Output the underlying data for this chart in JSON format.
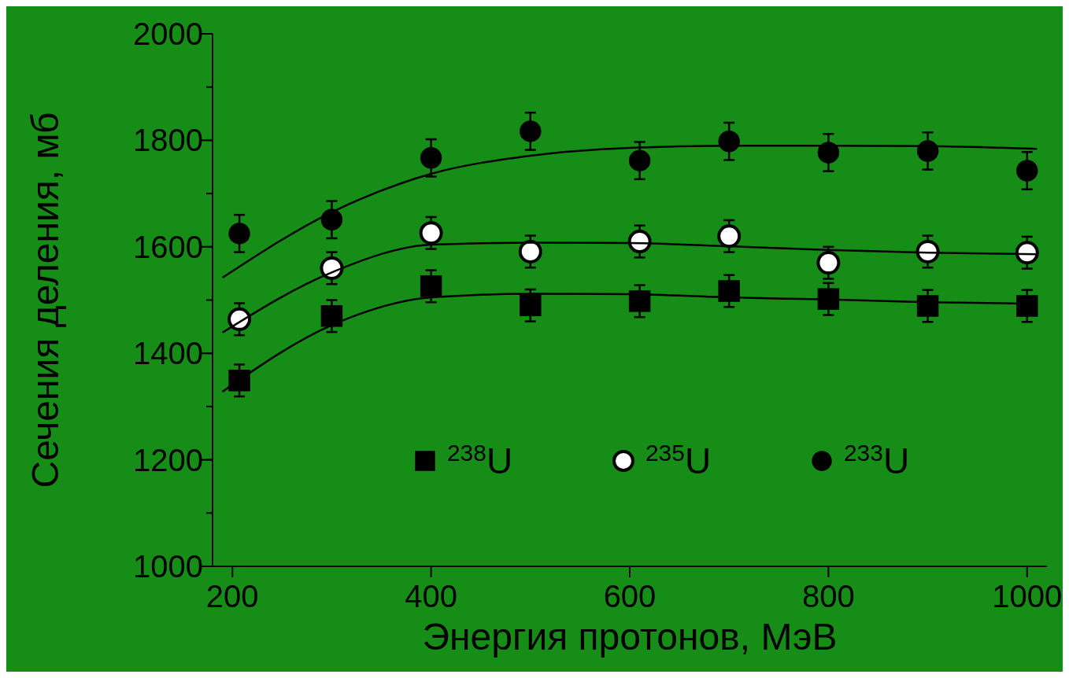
{
  "chart_data": {
    "type": "scatter",
    "xlabel": "Энергия  протонов,  МэВ",
    "ylabel": "Сечения  деления,  мб",
    "xlim": [
      180,
      1020
    ],
    "xticks": [
      200,
      400,
      600,
      800,
      1000
    ],
    "ylim": [
      1000,
      2000
    ],
    "yticks": [
      1000,
      1200,
      1400,
      1600,
      1800,
      2000
    ],
    "grid": false,
    "legend": "bottom",
    "series": [
      {
        "name": "$^{238}$U",
        "color": "#000000",
        "marker": "square",
        "x": [
          207,
          300,
          400,
          500,
          610,
          700,
          800,
          900,
          1000
        ],
        "values": [
          1349,
          1470,
          1526,
          1490,
          1498,
          1517,
          1502,
          1489,
          1489
        ],
        "errors": [
          30,
          30,
          30,
          30,
          30,
          30,
          30,
          30,
          30
        ]
      },
      {
        "name": "$^{235}$U",
        "color": "#ffffff",
        "marker": "circle",
        "x": [
          207,
          300,
          400,
          500,
          610,
          700,
          800,
          900,
          1000
        ],
        "values": [
          1464,
          1560,
          1626,
          1591,
          1610,
          1620,
          1570,
          1591,
          1589
        ],
        "errors": [
          30,
          30,
          30,
          30,
          30,
          30,
          30,
          30,
          30
        ]
      },
      {
        "name": "$^{233}$U",
        "color": "#000000",
        "marker": "circle",
        "x": [
          207,
          300,
          400,
          500,
          610,
          700,
          800,
          900,
          1000
        ],
        "values": [
          1625,
          1651,
          1767,
          1817,
          1762,
          1798,
          1777,
          1780,
          1743
        ],
        "errors": [
          35,
          35,
          35,
          35,
          35,
          35,
          35,
          35,
          35
        ]
      },
      {
        "type": "line",
        "color": "#000000",
        "marker": "none",
        "x": [
          190,
          300,
          400,
          500,
          600,
          700,
          800,
          900,
          1010
        ],
        "values": [
          1328,
          1453,
          1505,
          1512,
          1511,
          1505,
          1501,
          1496,
          1493
        ]
      },
      {
        "type": "line",
        "color": "#000000",
        "marker": "none",
        "x": [
          190,
          300,
          400,
          500,
          600,
          700,
          800,
          900,
          1010
        ],
        "values": [
          1439,
          1552,
          1604,
          1608,
          1607,
          1601,
          1594,
          1589,
          1586
        ]
      },
      {
        "type": "line",
        "color": "#000000",
        "marker": "none",
        "x": [
          190,
          300,
          400,
          500,
          600,
          700,
          800,
          900,
          1010
        ],
        "values": [
          1542,
          1665,
          1737,
          1771,
          1786,
          1790,
          1790,
          1789,
          1784
        ]
      }
    ]
  }
}
